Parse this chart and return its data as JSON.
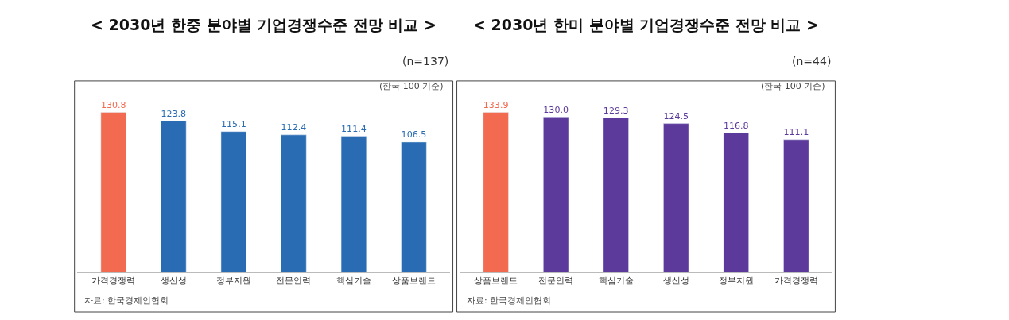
{
  "chart_data": [
    {
      "type": "bar",
      "title": "< 2030년 한중 분야별 기업경쟁수준 전망 비교 >",
      "subtitle": "(n=137)",
      "categories": [
        "가격경쟁력",
        "생산성",
        "정부지원",
        "전문인력",
        "핵심기술",
        "상품브랜드"
      ],
      "values": [
        130.8,
        123.8,
        115.1,
        112.4,
        111.4,
        106.5
      ],
      "colors": [
        "#f26a4f",
        "#2a6cb3",
        "#2a6cb3",
        "#2a6cb3",
        "#2a6cb3",
        "#2a6cb3"
      ],
      "data_labels": true,
      "annotations": [
        "(한국 100 기준)",
        "자료: 한국경제인협회"
      ]
    },
    {
      "type": "bar",
      "title": "< 2030년 한미 분야별 기업경쟁수준 전망 비교 >",
      "subtitle": "(n=44)",
      "categories": [
        "상품브랜드",
        "전문인력",
        "핵심기술",
        "생산성",
        "정부지원",
        "가격경쟁력"
      ],
      "values": [
        133.9,
        130.0,
        129.3,
        124.5,
        116.8,
        111.1
      ],
      "colors": [
        "#f26a4f",
        "#5b3a9c",
        "#5b3a9c",
        "#5b3a9c",
        "#5b3a9c",
        "#5b3a9c"
      ],
      "value_labels": [
        "133.9",
        "130.0",
        "129.3",
        "124.5",
        "116.8",
        "111.1"
      ],
      "annotations": [
        "(한국 100 기준)",
        "자료: 한국경제인협회"
      ]
    }
  ]
}
